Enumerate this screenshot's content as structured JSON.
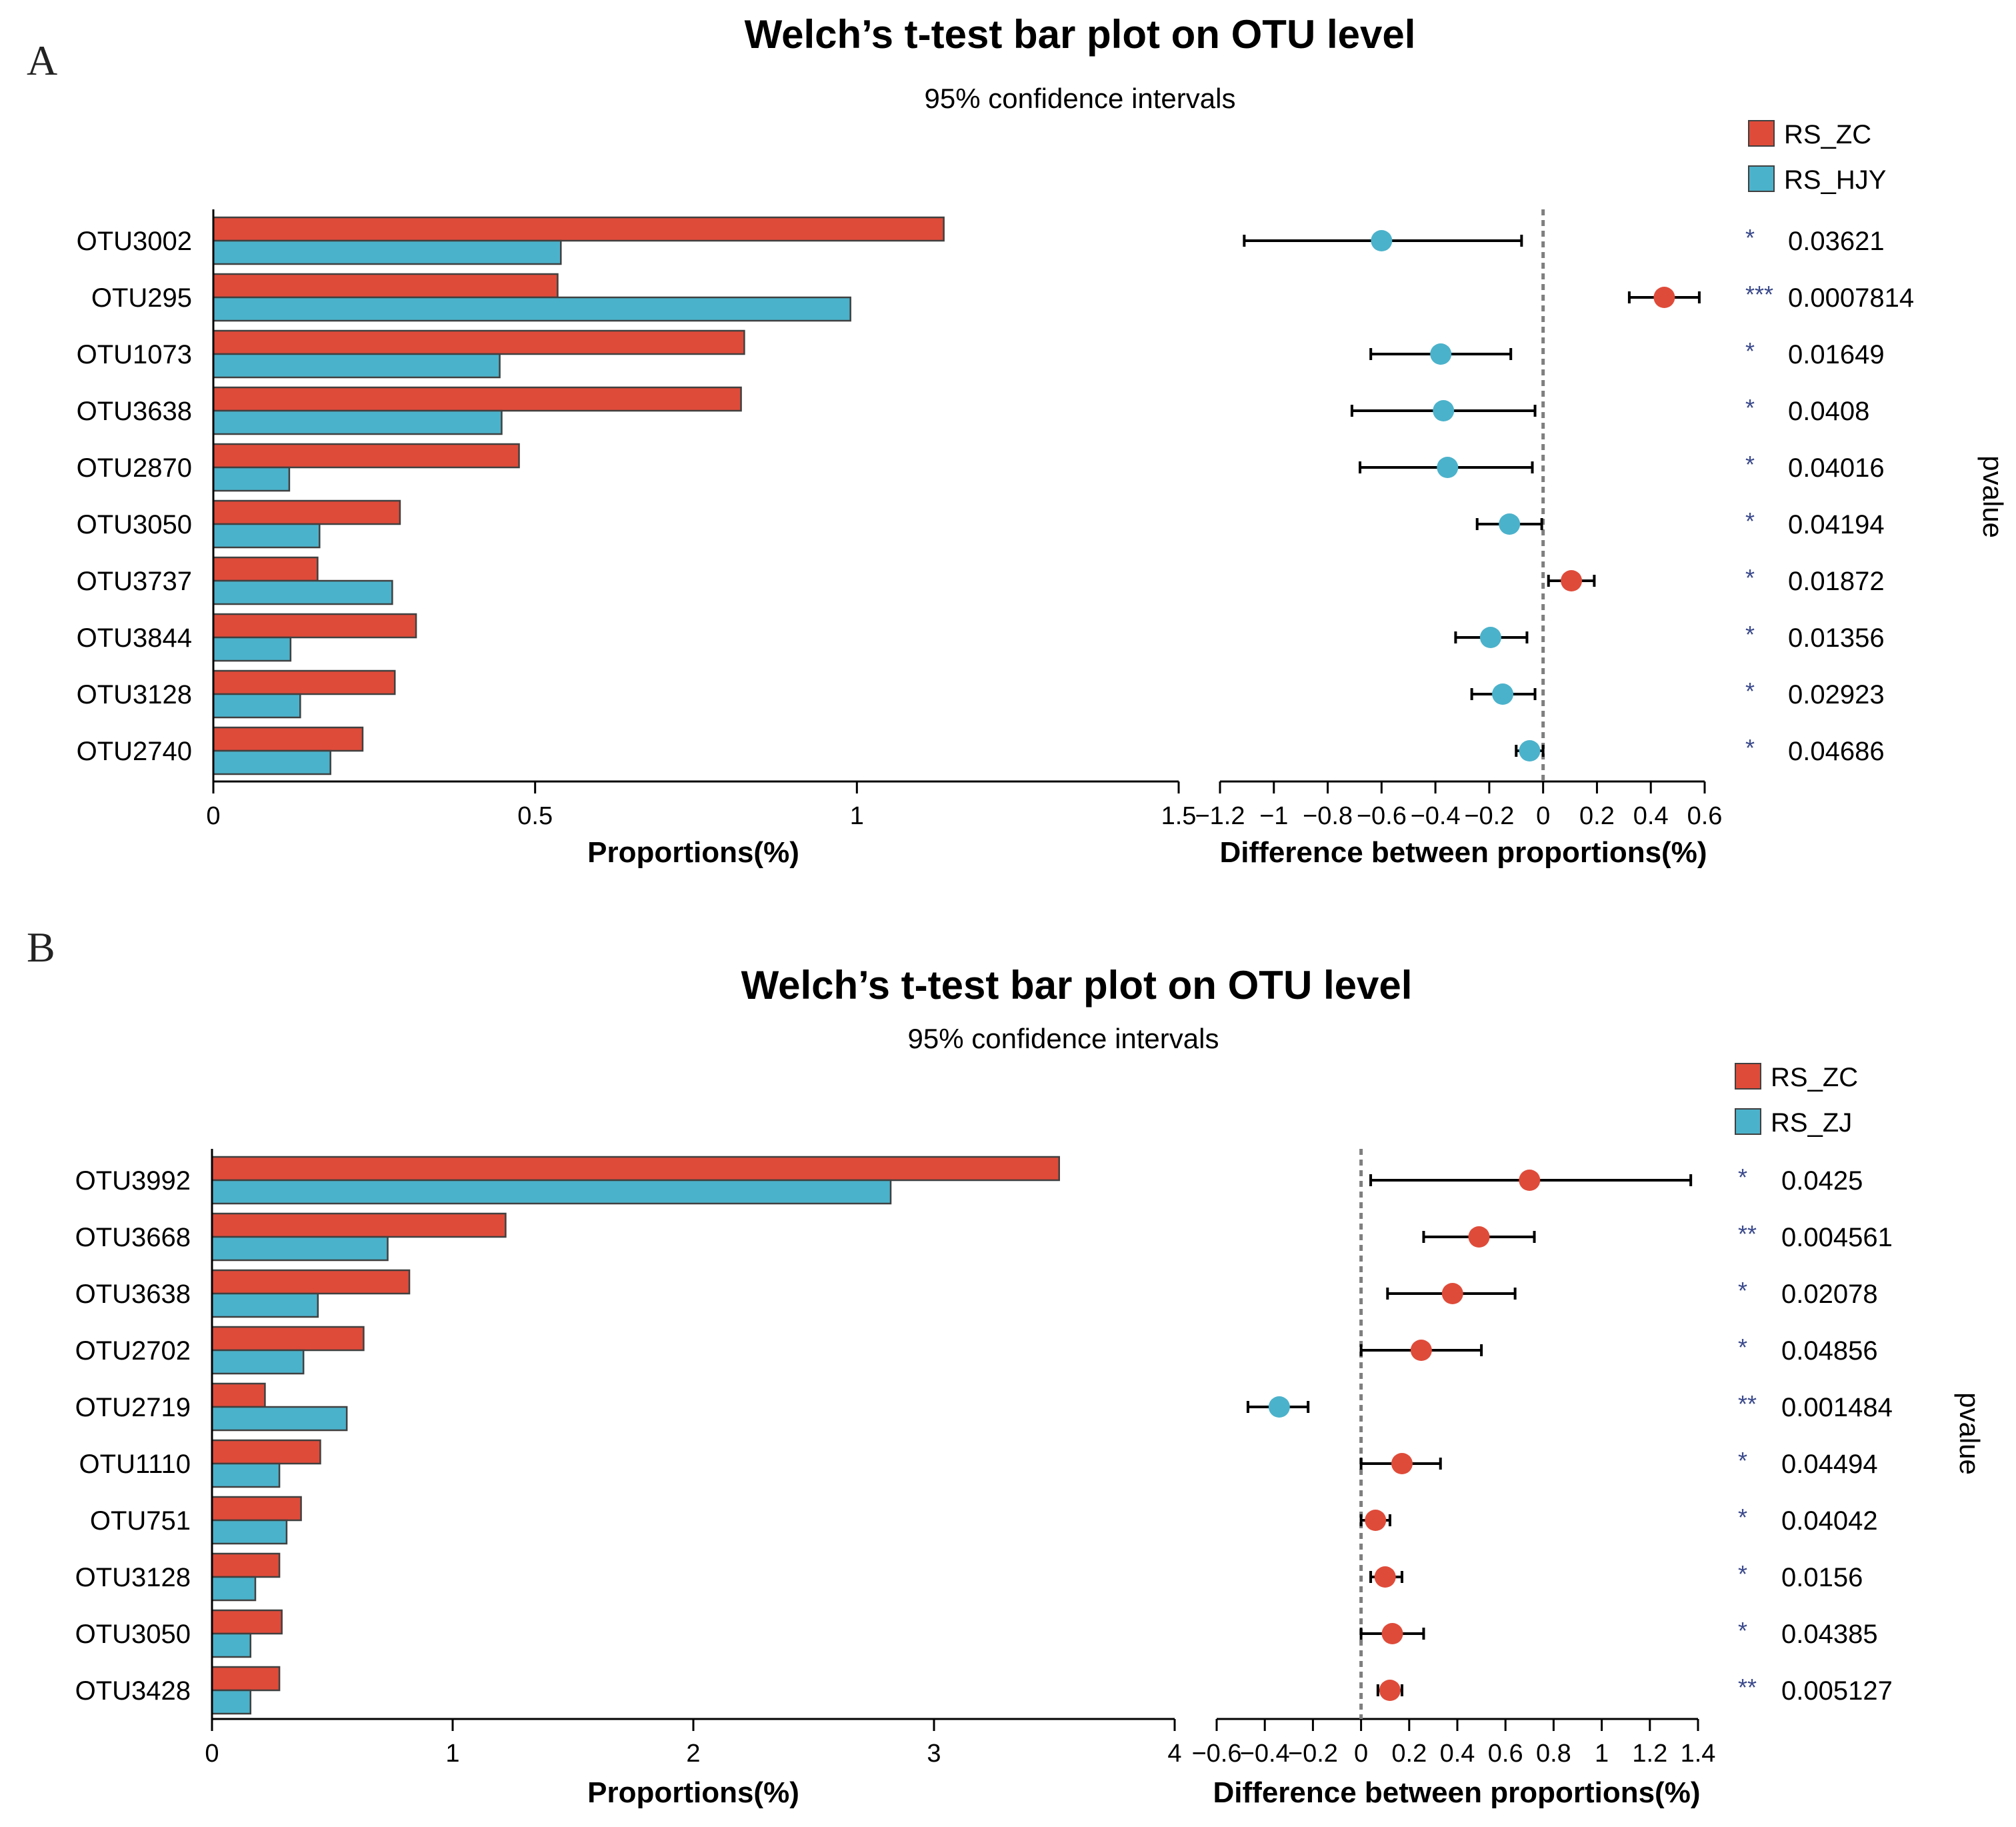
{
  "colors": {
    "group1": "#df4b39",
    "group2": "#4bb2cb",
    "edge": "#404040",
    "stars": "#3b4a8c",
    "zero_line": "#7f7f7f"
  },
  "chart_data": [
    {
      "panel_label": "A",
      "type": "bar",
      "title": "Welch’s t-test bar plot on OTU level",
      "subtitle": "95% confidence intervals",
      "categories": [
        "OTU3002",
        "OTU295",
        "OTU1073",
        "OTU3638",
        "OTU2870",
        "OTU3050",
        "OTU3737",
        "OTU3844",
        "OTU3128",
        "OTU2740"
      ],
      "series": [
        {
          "name": "RS_ZC",
          "values": [
            1.135,
            0.535,
            0.825,
            0.82,
            0.475,
            0.29,
            0.162,
            0.315,
            0.282,
            0.232
          ]
        },
        {
          "name": "RS_HJY",
          "values": [
            0.54,
            0.99,
            0.445,
            0.448,
            0.118,
            0.165,
            0.278,
            0.12,
            0.135,
            0.182
          ]
        }
      ],
      "xlabel": "Proportions(%)",
      "xlim": [
        0,
        1.5
      ],
      "xticks": [
        0,
        0.5,
        1,
        1.5
      ],
      "xtick_labels": [
        "0",
        "0.5",
        "1",
        "1.5"
      ],
      "diff": {
        "type": "scatter",
        "xlabel": "Difference between proportions(%)",
        "xlim": [
          -1.2,
          0.6
        ],
        "xticks": [
          -1.2,
          -1,
          -0.8,
          -0.6,
          -0.4,
          -0.2,
          0,
          0.2,
          0.4,
          0.6
        ],
        "xtick_labels": [
          "−1.2",
          "−1",
          "−0.8",
          "−0.6",
          "−0.4",
          "−0.2",
          "0",
          "0.2",
          "0.4",
          "0.6"
        ],
        "values": [
          -0.6,
          0.45,
          -0.38,
          -0.37,
          -0.355,
          -0.125,
          0.105,
          -0.195,
          -0.15,
          -0.05
        ],
        "ci_low": [
          -1.11,
          0.32,
          -0.64,
          -0.71,
          -0.68,
          -0.245,
          0.02,
          -0.325,
          -0.265,
          -0.1
        ],
        "ci_high": [
          -0.08,
          0.58,
          -0.12,
          -0.03,
          -0.04,
          -0.005,
          0.19,
          -0.06,
          -0.03,
          0.0
        ]
      },
      "pvalue_label": "pvalue",
      "stars": [
        "*",
        "***",
        "*",
        "*",
        "*",
        "*",
        "*",
        "*",
        "*",
        "*"
      ],
      "pvalues": [
        "0.03621",
        "0.0007814",
        "0.01649",
        "0.0408",
        "0.04016",
        "0.04194",
        "0.01872",
        "0.01356",
        "0.02923",
        "0.04686"
      ]
    },
    {
      "panel_label": "B",
      "type": "bar",
      "title": "Welch’s t-test bar plot on OTU level",
      "subtitle": "95% confidence intervals",
      "categories": [
        "OTU3992",
        "OTU3668",
        "OTU3638",
        "OTU2702",
        "OTU2719",
        "OTU1110",
        "OTU751",
        "OTU3128",
        "OTU3050",
        "OTU3428"
      ],
      "series": [
        {
          "name": "RS_ZC",
          "values": [
            3.52,
            1.22,
            0.82,
            0.63,
            0.22,
            0.45,
            0.37,
            0.28,
            0.29,
            0.28
          ]
        },
        {
          "name": "RS_ZJ",
          "values": [
            2.82,
            0.73,
            0.44,
            0.38,
            0.56,
            0.28,
            0.31,
            0.18,
            0.16,
            0.16
          ]
        }
      ],
      "xlabel": "Proportions(%)",
      "xlim": [
        0,
        4
      ],
      "xticks": [
        0,
        1,
        2,
        3,
        4
      ],
      "xtick_labels": [
        "0",
        "1",
        "2",
        "3",
        "4"
      ],
      "diff": {
        "type": "scatter",
        "xlabel": "Difference between proportions(%)",
        "xlim": [
          -0.6,
          1.4
        ],
        "xticks": [
          -0.6,
          -0.4,
          -0.2,
          0,
          0.2,
          0.4,
          0.6,
          0.8,
          1,
          1.2,
          1.4
        ],
        "xtick_labels": [
          "−0.6",
          "−0.4",
          "−0.2",
          "0",
          "0.2",
          "0.4",
          "0.6",
          "0.8",
          "1",
          "1.2",
          "1.4"
        ],
        "values": [
          0.7,
          0.49,
          0.38,
          0.25,
          -0.34,
          0.17,
          0.06,
          0.1,
          0.13,
          0.12
        ],
        "ci_low": [
          0.04,
          0.26,
          0.11,
          0.0,
          -0.47,
          0.0,
          0.0,
          0.04,
          0.0,
          0.07
        ],
        "ci_high": [
          1.37,
          0.72,
          0.64,
          0.5,
          -0.22,
          0.33,
          0.12,
          0.17,
          0.26,
          0.17
        ]
      },
      "pvalue_label": "pvalue",
      "stars": [
        "*",
        "**",
        "*",
        "*",
        "**",
        "*",
        "*",
        "*",
        "*",
        "**"
      ],
      "pvalues": [
        "0.0425",
        "0.004561",
        "0.02078",
        "0.04856",
        "0.001484",
        "0.04494",
        "0.04042",
        "0.0156",
        "0.04385",
        "0.005127"
      ]
    }
  ]
}
